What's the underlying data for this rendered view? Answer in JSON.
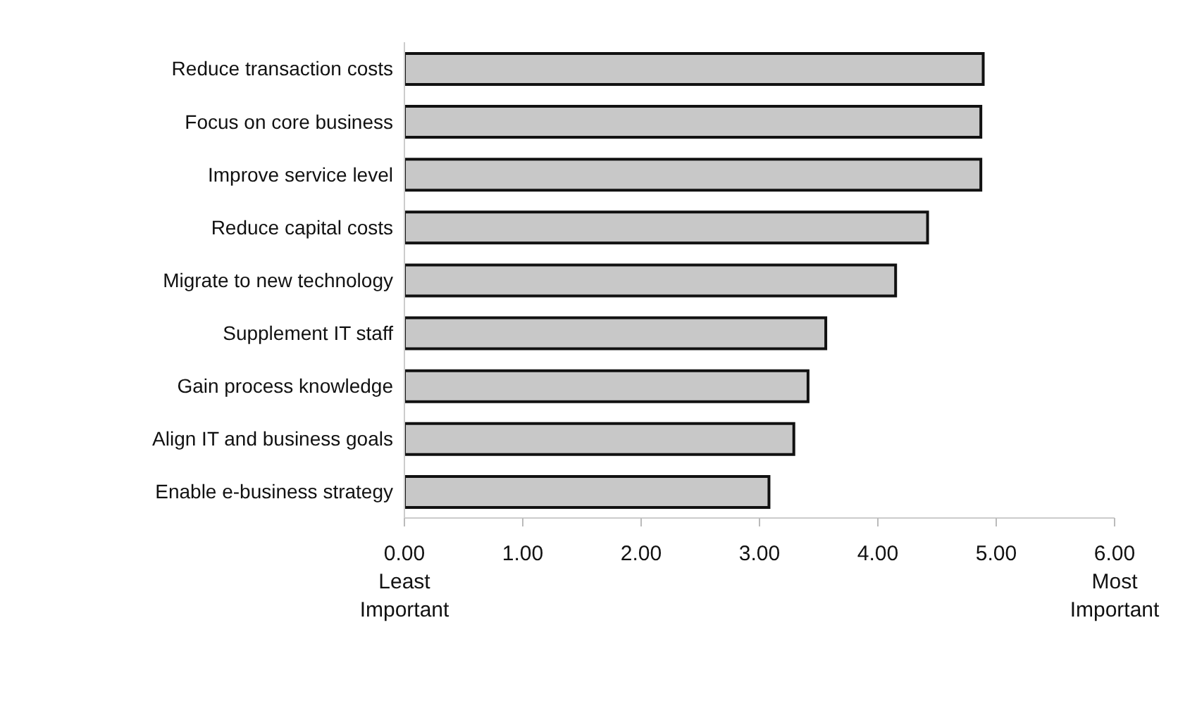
{
  "chart_data": {
    "type": "bar",
    "orientation": "horizontal",
    "categories": [
      "Reduce transaction costs",
      "Focus on core business",
      "Improve service level",
      "Reduce capital costs",
      "Migrate to new technology",
      "Supplement IT staff",
      "Gain process knowledge",
      "Align IT and business goals",
      "Enable e-business strategy"
    ],
    "values": [
      4.89,
      4.87,
      4.87,
      4.42,
      4.15,
      3.56,
      3.41,
      3.29,
      3.08
    ],
    "color": "#c8c8c8",
    "xlim": [
      0,
      6
    ],
    "xticks": [
      {
        "value": 0,
        "label": "0.00\nLeast\nImportant"
      },
      {
        "value": 1,
        "label": "1.00"
      },
      {
        "value": 2,
        "label": "2.00"
      },
      {
        "value": 3,
        "label": "3.00"
      },
      {
        "value": 4,
        "label": "4.00"
      },
      {
        "value": 5,
        "label": "5.00"
      },
      {
        "value": 6,
        "label": "6.00\nMost\nImportant"
      }
    ],
    "grid": false
  }
}
